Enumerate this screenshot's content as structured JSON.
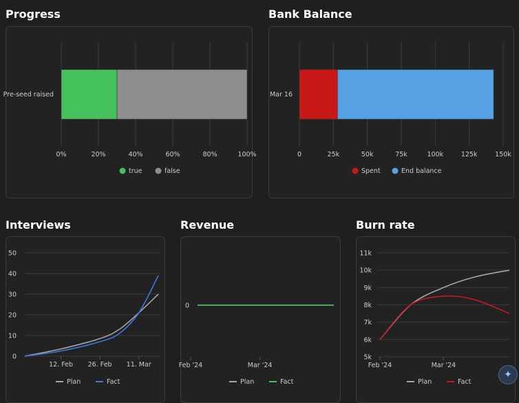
{
  "titles": {
    "progress": "Progress",
    "bank": "Bank Balance",
    "interviews": "Interviews",
    "revenue": "Revenue",
    "burn": "Burn rate"
  },
  "colors": {
    "green": "#45c15e",
    "gray": "#8e8e8e",
    "red": "#c81818",
    "blue": "#56a1e3",
    "line_blue": "#3d78d8",
    "plan": "#a6a6a6"
  },
  "ai_button_icon": "sparkles-icon",
  "chart_data": [
    {
      "id": "progress",
      "type": "bar",
      "orientation": "horizontal",
      "stacked": "percent",
      "categories": [
        "Pre-seed raised"
      ],
      "series": [
        {
          "name": "true",
          "values": [
            30
          ],
          "color": "#45c15e"
        },
        {
          "name": "false",
          "values": [
            70
          ],
          "color": "#8e8e8e"
        }
      ],
      "xlim": [
        0,
        100
      ],
      "xticks": [
        "0%",
        "20%",
        "40%",
        "60%",
        "80%",
        "100%"
      ],
      "grid": true,
      "legend": "bottom"
    },
    {
      "id": "bank",
      "type": "bar",
      "orientation": "horizontal",
      "stacked": true,
      "categories": [
        "Mar 16"
      ],
      "series": [
        {
          "name": "Spent",
          "values": [
            28000
          ],
          "color": "#c81818"
        },
        {
          "name": "End balance",
          "values": [
            115000
          ],
          "color": "#56a1e3"
        }
      ],
      "xlim": [
        0,
        150000
      ],
      "xticks": [
        "0",
        "25k",
        "50k",
        "75k",
        "100k",
        "125k",
        "150k"
      ],
      "grid": true,
      "legend": "bottom"
    },
    {
      "id": "interviews",
      "type": "line",
      "x": [
        "2024-01-30",
        "2024-02-12",
        "2024-02-26",
        "2024-03-04",
        "2024-03-11",
        "2024-03-18"
      ],
      "series": [
        {
          "name": "Plan",
          "values": [
            0,
            3.5,
            8.5,
            13,
            21,
            30
          ],
          "color": "#a6a6a6"
        },
        {
          "name": "Fact",
          "values": [
            0,
            2.5,
            7,
            11,
            21,
            39
          ],
          "color": "#3d78d8"
        }
      ],
      "ylim": [
        0,
        50
      ],
      "yticks": [
        "0",
        "10",
        "20",
        "30",
        "40",
        "50"
      ],
      "xticks": [
        "12. Feb",
        "26. Feb",
        "11. Mar"
      ],
      "grid": true,
      "legend": "bottom"
    },
    {
      "id": "revenue",
      "type": "line",
      "x": [
        "2024-02-01",
        "2024-03-31"
      ],
      "series": [
        {
          "name": "Plan",
          "values": [
            0,
            0
          ],
          "color": "#a6a6a6"
        },
        {
          "name": "Fact",
          "values": [
            0,
            0
          ],
          "color": "#45c15e"
        }
      ],
      "yticks": [
        "0"
      ],
      "xticks": [
        "Feb '24",
        "Mar '24"
      ],
      "grid": true,
      "legend": "bottom"
    },
    {
      "id": "burn",
      "type": "line",
      "x": [
        "2024-02-01",
        "2024-02-15",
        "2024-03-01",
        "2024-03-15",
        "2024-03-31"
      ],
      "series": [
        {
          "name": "Plan",
          "values": [
            6000,
            8000,
            9000,
            9600,
            10000
          ],
          "color": "#a6a6a6"
        },
        {
          "name": "Fact",
          "values": [
            6000,
            8000,
            8500,
            8300,
            7500
          ],
          "color": "#c81818"
        }
      ],
      "ylim": [
        5000,
        11000
      ],
      "yticks": [
        "5k",
        "6k",
        "7k",
        "8k",
        "9k",
        "10k",
        "11k"
      ],
      "xticks": [
        "Feb '24",
        "Mar '24"
      ],
      "grid": true,
      "legend": "bottom"
    }
  ]
}
